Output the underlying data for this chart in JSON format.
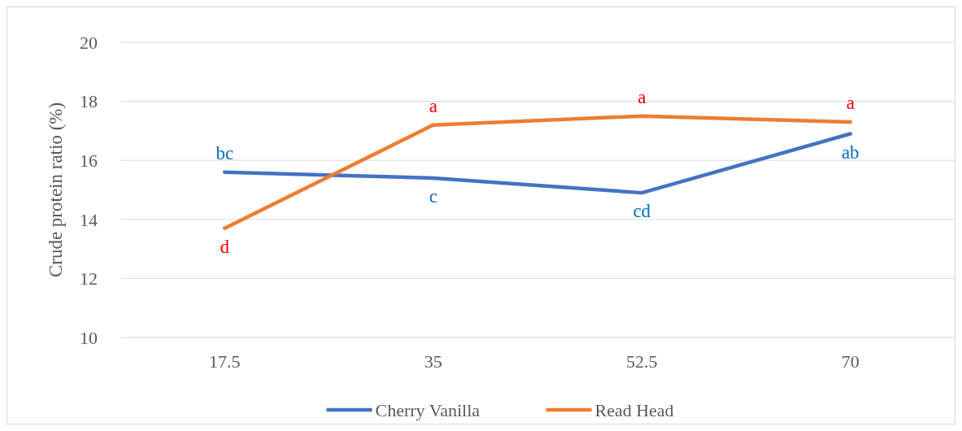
{
  "chart_data": {
    "type": "line",
    "ylabel": "Crude protein ratio (%)",
    "categories": [
      "17.5",
      "35",
      "52.5",
      "70"
    ],
    "series": [
      {
        "name": "Cherry Vanilla",
        "color": "#4472c4",
        "values": [
          15.6,
          15.4,
          14.9,
          16.9
        ]
      },
      {
        "name": "Read Head",
        "color": "#ed7d31",
        "values": [
          13.7,
          17.2,
          17.5,
          17.3
        ]
      }
    ],
    "ylim": [
      10,
      20
    ],
    "yticks": [
      10,
      12,
      14,
      16,
      18,
      20
    ],
    "grid": "y",
    "legend": "bottom",
    "marker": "none",
    "line_style": "solid",
    "annotations": [
      {
        "text": "bc",
        "x": "17.5",
        "y": 15.6
      },
      {
        "text": "d",
        "x": "17.5",
        "y": 13.7
      },
      {
        "text": "a",
        "x": "35",
        "y": 17.2
      },
      {
        "text": "c",
        "x": "35",
        "y": 15.4
      },
      {
        "text": "a",
        "x": "52.5",
        "y": 17.5
      },
      {
        "text": "cd",
        "x": "52.5",
        "y": 14.9
      },
      {
        "text": "a",
        "x": "70",
        "y": 17.3
      },
      {
        "text": "ab",
        "x": "70",
        "y": 16.9
      }
    ]
  }
}
